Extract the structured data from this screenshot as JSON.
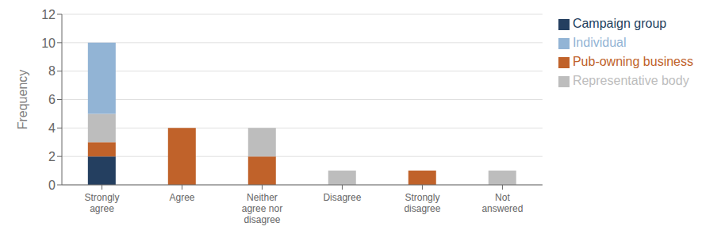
{
  "chart_data": {
    "type": "bar",
    "stacked": true,
    "categories": [
      "Strongly\nagree",
      "Agree",
      "Neither\nagree nor\ndisagree",
      "Disagree",
      "Strongly\ndisagree",
      "Not\nanswered"
    ],
    "series": [
      {
        "name": "Campaign group",
        "color": "#243F60",
        "values": [
          2,
          0,
          0,
          0,
          0,
          0
        ]
      },
      {
        "name": "Pub-owning business",
        "color": "#C0622A",
        "values": [
          1,
          4,
          2,
          0,
          1,
          0
        ]
      },
      {
        "name": "Representative body",
        "color": "#BDBDBD",
        "values": [
          2,
          0,
          2,
          1,
          0,
          1
        ]
      },
      {
        "name": "Individual",
        "color": "#92B4D5",
        "values": [
          5,
          0,
          0,
          0,
          0,
          0
        ]
      }
    ],
    "ylabel": "Frequency",
    "ylim": [
      0,
      12
    ],
    "yticks": [
      0,
      2,
      4,
      6,
      8,
      10,
      12
    ],
    "grid": true,
    "legend": "right"
  }
}
